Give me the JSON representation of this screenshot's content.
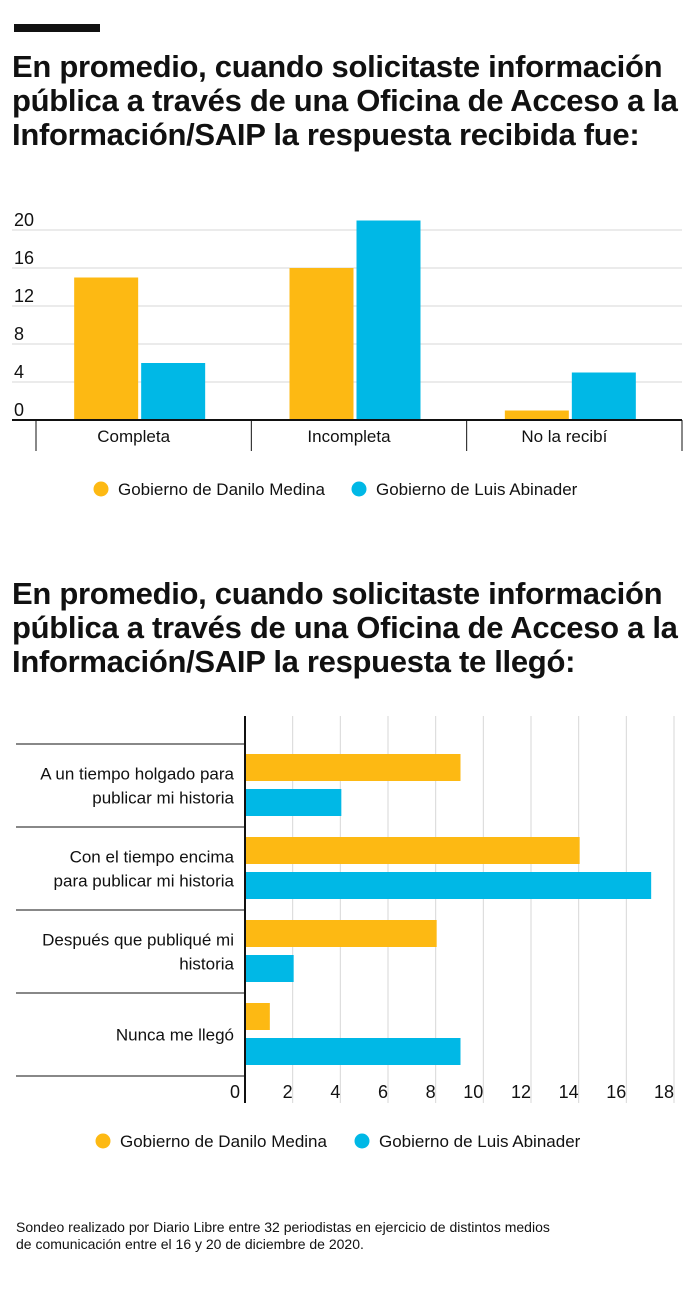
{
  "colors": {
    "medina": "#FDB913",
    "abinader": "#00B8E6",
    "grid": "#d7d7d7",
    "axis": "#111111"
  },
  "chart1": {
    "title": "En promedio, cuando solicitaste información pública a través de una Oficina de Acceso a la Información/SAIP la respuesta recibida fue:",
    "chart_data": {
      "type": "bar",
      "categories": [
        "Completa",
        "Incompleta",
        "No la recibí"
      ],
      "series": [
        {
          "name": "Gobierno de Danilo Medina",
          "values": [
            15,
            16,
            1
          ]
        },
        {
          "name": "Gobierno de Luis Abinader",
          "values": [
            6,
            21,
            5
          ]
        }
      ],
      "ylim": [
        0,
        20
      ],
      "yticks": [
        "0",
        "4",
        "8",
        "12",
        "16",
        "20"
      ],
      "grid": true,
      "legend": "bottom"
    }
  },
  "chart2": {
    "title": "En promedio, cuando solicitaste información pública a través de una Oficina de Acceso a la Información/SAIP la respuesta te llegó:",
    "chart_data": {
      "type": "bar",
      "orientation": "horizontal",
      "categories": [
        [
          "A un tiempo holgado para",
          "publicar mi historia"
        ],
        [
          "Con el tiempo encima",
          "para publicar mi historia"
        ],
        [
          "Después que publiqué mi",
          "historia"
        ],
        [
          "Nunca me llegó"
        ]
      ],
      "series": [
        {
          "name": "Gobierno de Danilo Medina",
          "values": [
            9,
            14,
            8,
            1
          ]
        },
        {
          "name": "Gobierno de Luis Abinader",
          "values": [
            4,
            17,
            2,
            9
          ]
        }
      ],
      "xlim": [
        0,
        18
      ],
      "xticks": [
        "0",
        "2",
        "4",
        "6",
        "8",
        "10",
        "12",
        "14",
        "16",
        "18"
      ],
      "grid": true,
      "legend": "bottom"
    }
  },
  "footnote": [
    "Sondeo realizado por Diario Libre entre 32 periodistas en ejercicio de distintos medios",
    "de comunicación entre el 16 y 20 de diciembre de 2020."
  ]
}
